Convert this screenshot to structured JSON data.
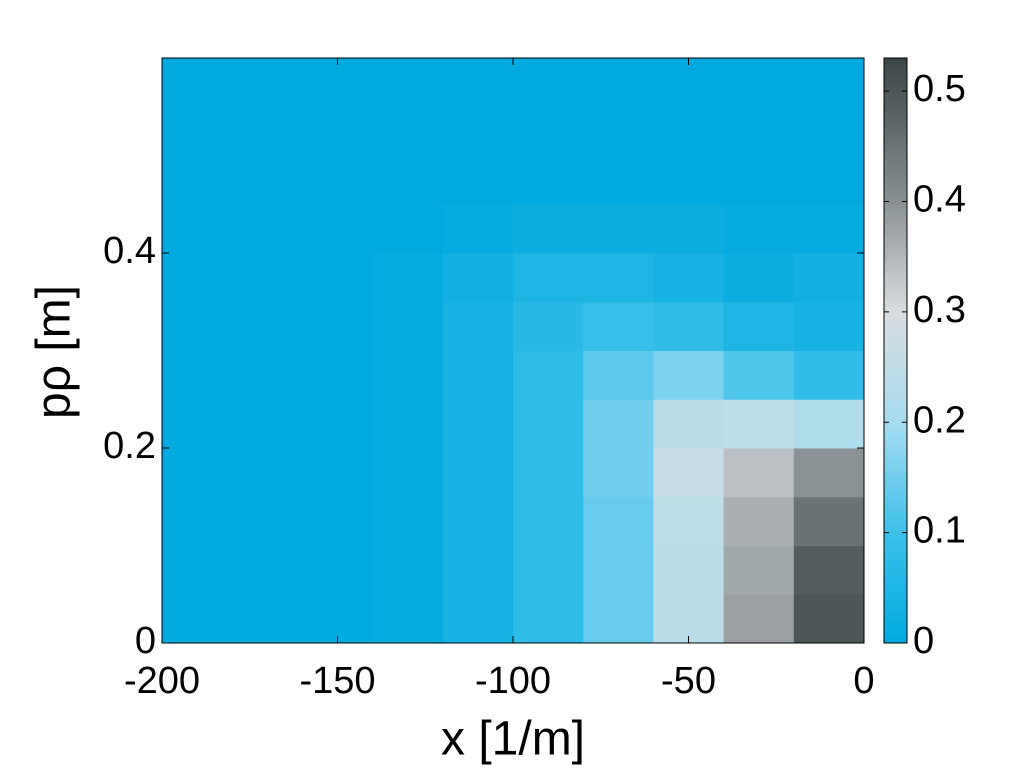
{
  "chart_data": {
    "type": "contourf",
    "xlabel": "x [1/m]",
    "ylabel": "pρ [m]",
    "x": [
      -190,
      -170,
      -150,
      -130,
      -110,
      -90,
      -70,
      -50,
      -30,
      -10
    ],
    "y": [
      0.025,
      0.075,
      0.125,
      0.175,
      0.225,
      0.275,
      0.325,
      0.375,
      0.425,
      0.475,
      0.525,
      0.575
    ],
    "z": [
      [
        0,
        0,
        0,
        0.01,
        0.04,
        0.08,
        0.14,
        0.24,
        0.38,
        0.5
      ],
      [
        0,
        0,
        0,
        0.01,
        0.04,
        0.08,
        0.14,
        0.24,
        0.37,
        0.49
      ],
      [
        0,
        0,
        0,
        0.01,
        0.04,
        0.08,
        0.14,
        0.25,
        0.36,
        0.45
      ],
      [
        0,
        0,
        0,
        0.01,
        0.04,
        0.08,
        0.15,
        0.26,
        0.34,
        0.4
      ],
      [
        0,
        0,
        0,
        0.01,
        0.04,
        0.08,
        0.15,
        0.24,
        0.25,
        0.22
      ],
      [
        0,
        0,
        0,
        0.01,
        0.04,
        0.08,
        0.13,
        0.16,
        0.12,
        0.08
      ],
      [
        0,
        0,
        0,
        0.01,
        0.04,
        0.07,
        0.09,
        0.08,
        0.05,
        0.04
      ],
      [
        0,
        0,
        0,
        0.01,
        0.03,
        0.05,
        0.05,
        0.04,
        0.02,
        0.03
      ],
      [
        0,
        0,
        0,
        0,
        0.01,
        0.02,
        0.02,
        0.02,
        0.01,
        0.01
      ],
      [
        0,
        0,
        0,
        0,
        0,
        0,
        0,
        0,
        0,
        0
      ],
      [
        0,
        0,
        0,
        0,
        0,
        0,
        0,
        0,
        0,
        0
      ],
      [
        0,
        0,
        0,
        0,
        0,
        0,
        0,
        0,
        0,
        0
      ]
    ],
    "xlim": [
      -200,
      0
    ],
    "xticks": [
      -200,
      -150,
      -100,
      -50,
      0
    ],
    "ylim": [
      0,
      0.6
    ],
    "yticks": [
      0,
      0.2,
      0.4
    ],
    "clim": [
      0,
      0.53
    ],
    "cticks": [
      0,
      0.1,
      0.2,
      0.3,
      0.4,
      0.5
    ],
    "colormap": [
      {
        "value": 0,
        "color": "#00a9e0"
      },
      {
        "value": 0.1,
        "color": "#3cc0ea"
      },
      {
        "value": 0.2,
        "color": "#a6dcef"
      },
      {
        "value": 0.3,
        "color": "#d8dde0"
      },
      {
        "value": 0.4,
        "color": "#8a9195"
      },
      {
        "value": 0.53,
        "color": "#3b4446"
      }
    ]
  }
}
